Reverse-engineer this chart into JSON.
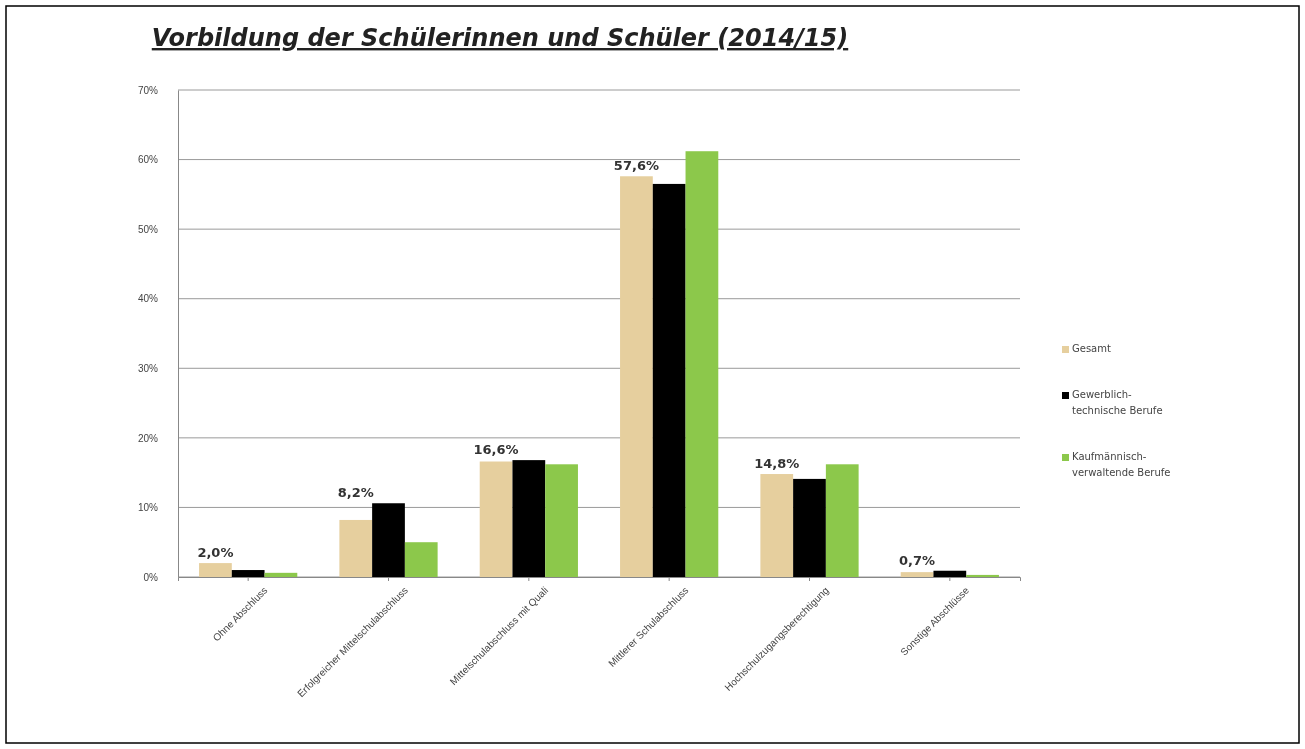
{
  "chart_data": {
    "type": "bar",
    "title": "Vorbildung der Schülerinnen und Schüler (2014/15)",
    "categories": [
      "Ohne Abschluss",
      "Erfolgreicher Mittelschulabschluss",
      "Mittelschulabschluss mit Quali",
      "Mittlerer Schulabschluss",
      "Hochschulzugangsberechtigung",
      "Sonstige Abschlüsse"
    ],
    "series": [
      {
        "name": "Gesamt",
        "color": "#e6cf9e",
        "values": [
          2.0,
          8.2,
          16.6,
          57.6,
          14.8,
          0.7
        ],
        "value_labels": [
          "2,0%",
          "8,2%",
          "16,6%",
          "57,6%",
          "14,8%",
          "0,7%"
        ]
      },
      {
        "name": "Gewerblich-technische Berufe",
        "color": "#000000",
        "values": [
          1.0,
          10.6,
          16.8,
          56.5,
          14.1,
          0.9
        ]
      },
      {
        "name": "Kaufmännisch-verwaltende Berufe",
        "color": "#8cc84b",
        "values": [
          0.6,
          5.0,
          16.2,
          61.2,
          16.2,
          0.3
        ]
      }
    ],
    "ylim": [
      0,
      70
    ],
    "yticks": [
      {
        "value": 0,
        "label": "0%"
      },
      {
        "value": 10,
        "label": "10%"
      },
      {
        "value": 20,
        "label": "20%"
      },
      {
        "value": 30,
        "label": "30%"
      },
      {
        "value": 40,
        "label": "40%"
      },
      {
        "value": 50,
        "label": "50%"
      },
      {
        "value": 60,
        "label": "60%"
      },
      {
        "value": 70,
        "label": "70%"
      }
    ],
    "grid": "y",
    "legend": "right"
  }
}
